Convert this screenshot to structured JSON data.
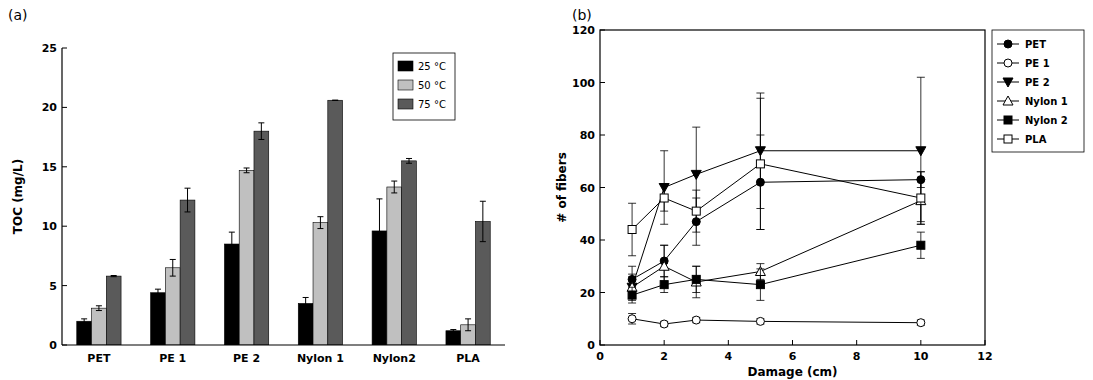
{
  "chart_data": [
    {
      "type": "bar",
      "title": "(a)",
      "y_label": "TOC (mg/L)",
      "categories": [
        "PET",
        "PE 1",
        "PE 2",
        "Nylon 1",
        "Nylon2",
        "PLA"
      ],
      "series": [
        {
          "name": "25 °C",
          "color": "#000000",
          "values": [
            2.0,
            4.4,
            8.5,
            3.5,
            9.6,
            1.2
          ],
          "errors": [
            0.2,
            0.3,
            1.0,
            0.5,
            2.7,
            0.1
          ]
        },
        {
          "name": "50 °C",
          "color": "#c0c0c0",
          "values": [
            3.1,
            6.5,
            14.7,
            10.3,
            13.3,
            1.7
          ],
          "errors": [
            0.2,
            0.7,
            0.2,
            0.5,
            0.5,
            0.5
          ]
        },
        {
          "name": "75 °C",
          "color": "#5a5a5a",
          "values": [
            5.8,
            12.2,
            18.0,
            20.6,
            15.5,
            10.4
          ],
          "errors": [
            0.05,
            1.0,
            0.7,
            0.0,
            0.2,
            1.7
          ]
        }
      ],
      "ylim": [
        0,
        25
      ],
      "yticks": [
        0,
        5,
        10,
        15,
        20,
        25
      ],
      "grid": false,
      "legend": "top-right"
    },
    {
      "type": "line",
      "title": "(b)",
      "x_label": "Damage (cm)",
      "y_label": "# of fibers",
      "x": [
        1,
        2,
        3,
        5,
        10
      ],
      "series": [
        {
          "name": "PET",
          "color": "#000000",
          "marker": "filled-circle",
          "values": [
            25,
            32,
            47,
            62,
            63
          ],
          "errors": [
            5,
            6,
            9,
            18,
            3
          ]
        },
        {
          "name": "PE 1",
          "color": "#000000",
          "marker": "open-circle",
          "values": [
            10,
            8,
            9.5,
            9,
            8.5
          ],
          "errors": [
            2,
            1,
            1,
            1,
            1
          ]
        },
        {
          "name": "PE 2",
          "color": "#000000",
          "marker": "filled-triangle-down",
          "values": [
            22,
            60,
            65,
            74,
            74
          ],
          "errors": [
            5,
            14,
            18,
            22,
            28
          ]
        },
        {
          "name": "Nylon 1",
          "color": "#000000",
          "marker": "open-triangle",
          "values": [
            22,
            30,
            24,
            28,
            55
          ],
          "errors": [
            4,
            8,
            6,
            3,
            8
          ]
        },
        {
          "name": "Nylon 2",
          "color": "#000000",
          "marker": "filled-square",
          "values": [
            19,
            23,
            25,
            23,
            38
          ],
          "errors": [
            3,
            3,
            5,
            6,
            5
          ]
        },
        {
          "name": "PLA",
          "color": "#000000",
          "marker": "open-square",
          "values": [
            44,
            56,
            51,
            69,
            56
          ],
          "errors": [
            10,
            5,
            8,
            25,
            10
          ]
        }
      ],
      "xlim": [
        0,
        12
      ],
      "xticks": [
        0,
        2,
        4,
        6,
        8,
        10,
        12
      ],
      "ylim": [
        0,
        120
      ],
      "yticks": [
        0,
        20,
        40,
        60,
        80,
        100,
        120
      ],
      "grid": false,
      "legend": "right"
    }
  ]
}
